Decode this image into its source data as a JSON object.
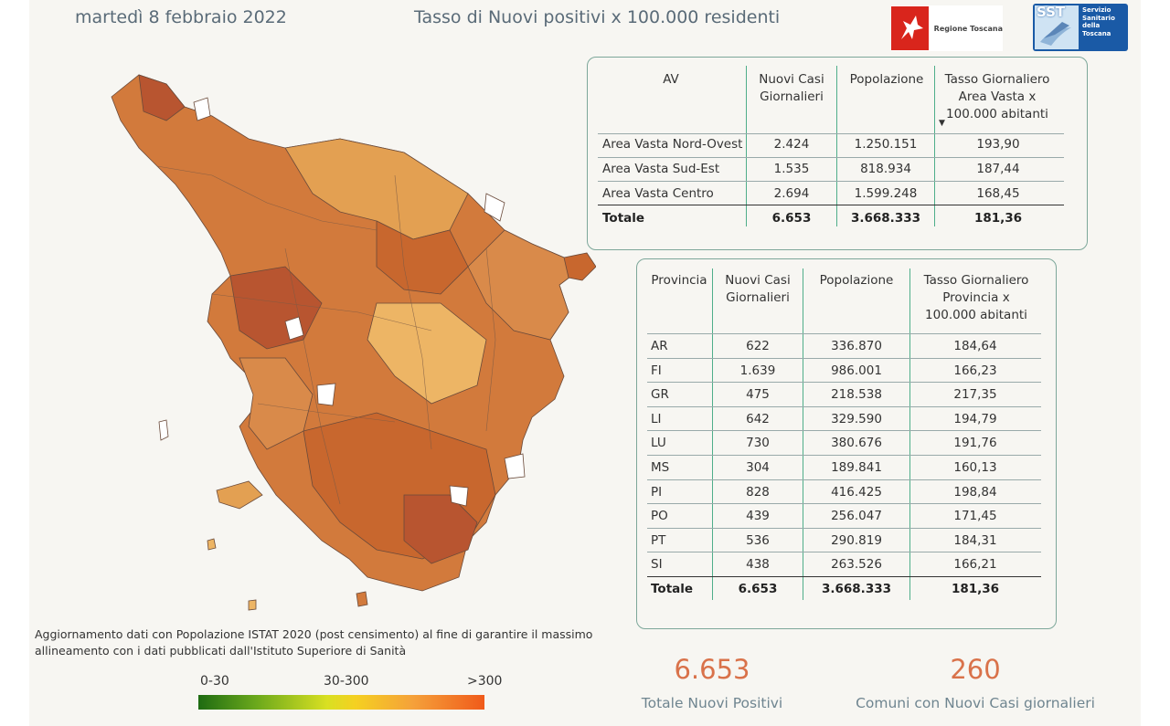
{
  "header": {
    "date": "martedì 8 febbraio 2022",
    "title": "Tasso di Nuovi positivi x 100.000 residenti",
    "logo_rt_text": "Regione Toscana",
    "logo_sst_abbr": "SST",
    "logo_sst_text": [
      "Servizio",
      "Sanitario",
      "della",
      "Toscana"
    ]
  },
  "av_table": {
    "headers": [
      "AV",
      "Nuovi Casi Giornalieri",
      "Popolazione",
      "Tasso Giornaliero Area Vasta x 100.000 abitanti"
    ],
    "sort_indicator": "▼",
    "rows": [
      [
        "Area Vasta Nord-Ovest",
        "2.424",
        "1.250.151",
        "193,90"
      ],
      [
        "Area Vasta Sud-Est",
        "1.535",
        "818.934",
        "187,44"
      ],
      [
        "Area Vasta Centro",
        "2.694",
        "1.599.248",
        "168,45"
      ]
    ],
    "total": [
      "Totale",
      "6.653",
      "3.668.333",
      "181,36"
    ]
  },
  "prov_table": {
    "headers": [
      "Provincia",
      "Nuovi Casi Giornalieri",
      "Popolazione",
      "Tasso Giornaliero Provincia x 100.000 abitanti"
    ],
    "rows": [
      [
        "AR",
        "622",
        "336.870",
        "184,64"
      ],
      [
        "FI",
        "1.639",
        "986.001",
        "166,23"
      ],
      [
        "GR",
        "475",
        "218.538",
        "217,35"
      ],
      [
        "LI",
        "642",
        "329.590",
        "194,79"
      ],
      [
        "LU",
        "730",
        "380.676",
        "191,76"
      ],
      [
        "MS",
        "304",
        "189.841",
        "160,13"
      ],
      [
        "PI",
        "828",
        "416.425",
        "198,84"
      ],
      [
        "PO",
        "439",
        "256.047",
        "171,45"
      ],
      [
        "PT",
        "536",
        "290.819",
        "184,31"
      ],
      [
        "SI",
        "438",
        "263.526",
        "166,21"
      ]
    ],
    "total": [
      "Totale",
      "6.653",
      "3.668.333",
      "181,36"
    ]
  },
  "note": "Aggiornamento dati con Popolazione ISTAT 2020 (post censimento) al fine di garantire il massimo allineamento con i dati pubblicati dall'Istituto Superiore di Sanità",
  "legend": {
    "low": "0-30",
    "mid": "30-300",
    "high": ">300",
    "colors": [
      "#1e6b12",
      "#d9e022",
      "#f05a1a"
    ]
  },
  "kpi": {
    "total_value": "6.653",
    "total_label": "Totale Nuovi Positivi",
    "comuni_value": "260",
    "comuni_label": "Comuni con Nuovi Casi giornalieri"
  },
  "map": {
    "fill_colors": [
      "#d98a4a",
      "#c8672e",
      "#e3a052",
      "#b85530",
      "#edb565",
      "#d27a3c"
    ]
  }
}
